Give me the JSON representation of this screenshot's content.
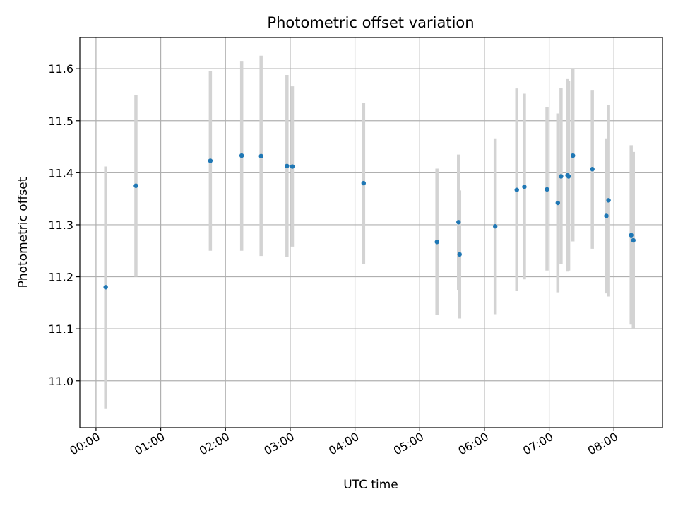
{
  "chart_data": {
    "type": "scatter",
    "title": "Photometric offset variation",
    "xlabel": "UTC time",
    "ylabel": "Photometric offset",
    "x_tick_labels": [
      "00:00",
      "01:00",
      "02:00",
      "03:00",
      "04:00",
      "05:00",
      "06:00",
      "07:00",
      "08:00"
    ],
    "y_tick_labels": [
      "11.0",
      "11.1",
      "11.2",
      "11.3",
      "11.4",
      "11.5",
      "11.6"
    ],
    "xlim": [
      "23:45",
      "08:45"
    ],
    "ylim": [
      10.91,
      11.66
    ],
    "grid": true,
    "error_bars": true,
    "point_color": "#1f77b4",
    "errorbar_color": "#d3d3d3",
    "points": [
      {
        "x": "00:09",
        "y": 11.18,
        "ylow": 10.947,
        "yhigh": 11.412
      },
      {
        "x": "00:37",
        "y": 11.375,
        "ylow": 11.2,
        "yhigh": 11.55
      },
      {
        "x": "01:46",
        "y": 11.423,
        "ylow": 11.25,
        "yhigh": 11.595
      },
      {
        "x": "02:15",
        "y": 11.433,
        "ylow": 11.25,
        "yhigh": 11.615
      },
      {
        "x": "02:33",
        "y": 11.432,
        "ylow": 11.24,
        "yhigh": 11.625
      },
      {
        "x": "02:57",
        "y": 11.413,
        "ylow": 11.238,
        "yhigh": 11.588
      },
      {
        "x": "03:02",
        "y": 11.412,
        "ylow": 11.258,
        "yhigh": 11.566
      },
      {
        "x": "04:08",
        "y": 11.38,
        "ylow": 11.224,
        "yhigh": 11.534
      },
      {
        "x": "05:16",
        "y": 11.267,
        "ylow": 11.126,
        "yhigh": 11.408
      },
      {
        "x": "05:36",
        "y": 11.305,
        "ylow": 11.175,
        "yhigh": 11.435
      },
      {
        "x": "05:37",
        "y": 11.243,
        "ylow": 11.12,
        "yhigh": 11.366
      },
      {
        "x": "06:10",
        "y": 11.297,
        "ylow": 11.128,
        "yhigh": 11.466
      },
      {
        "x": "06:30",
        "y": 11.367,
        "ylow": 11.173,
        "yhigh": 11.562
      },
      {
        "x": "06:37",
        "y": 11.373,
        "ylow": 11.195,
        "yhigh": 11.552
      },
      {
        "x": "06:58",
        "y": 11.368,
        "ylow": 11.212,
        "yhigh": 11.526
      },
      {
        "x": "07:08",
        "y": 11.342,
        "ylow": 11.17,
        "yhigh": 11.514
      },
      {
        "x": "07:11",
        "y": 11.393,
        "ylow": 11.224,
        "yhigh": 11.563
      },
      {
        "x": "07:17",
        "y": 11.395,
        "ylow": 11.21,
        "yhigh": 11.58
      },
      {
        "x": "07:18",
        "y": 11.393,
        "ylow": 11.212,
        "yhigh": 11.576
      },
      {
        "x": "07:22",
        "y": 11.433,
        "ylow": 11.268,
        "yhigh": 11.6
      },
      {
        "x": "07:40",
        "y": 11.407,
        "ylow": 11.254,
        "yhigh": 11.558
      },
      {
        "x": "07:53",
        "y": 11.317,
        "ylow": 11.168,
        "yhigh": 11.466
      },
      {
        "x": "07:55",
        "y": 11.347,
        "ylow": 11.162,
        "yhigh": 11.531
      },
      {
        "x": "08:16",
        "y": 11.28,
        "ylow": 11.108,
        "yhigh": 11.453
      },
      {
        "x": "08:18",
        "y": 11.27,
        "ylow": 11.1,
        "yhigh": 11.44
      }
    ]
  }
}
